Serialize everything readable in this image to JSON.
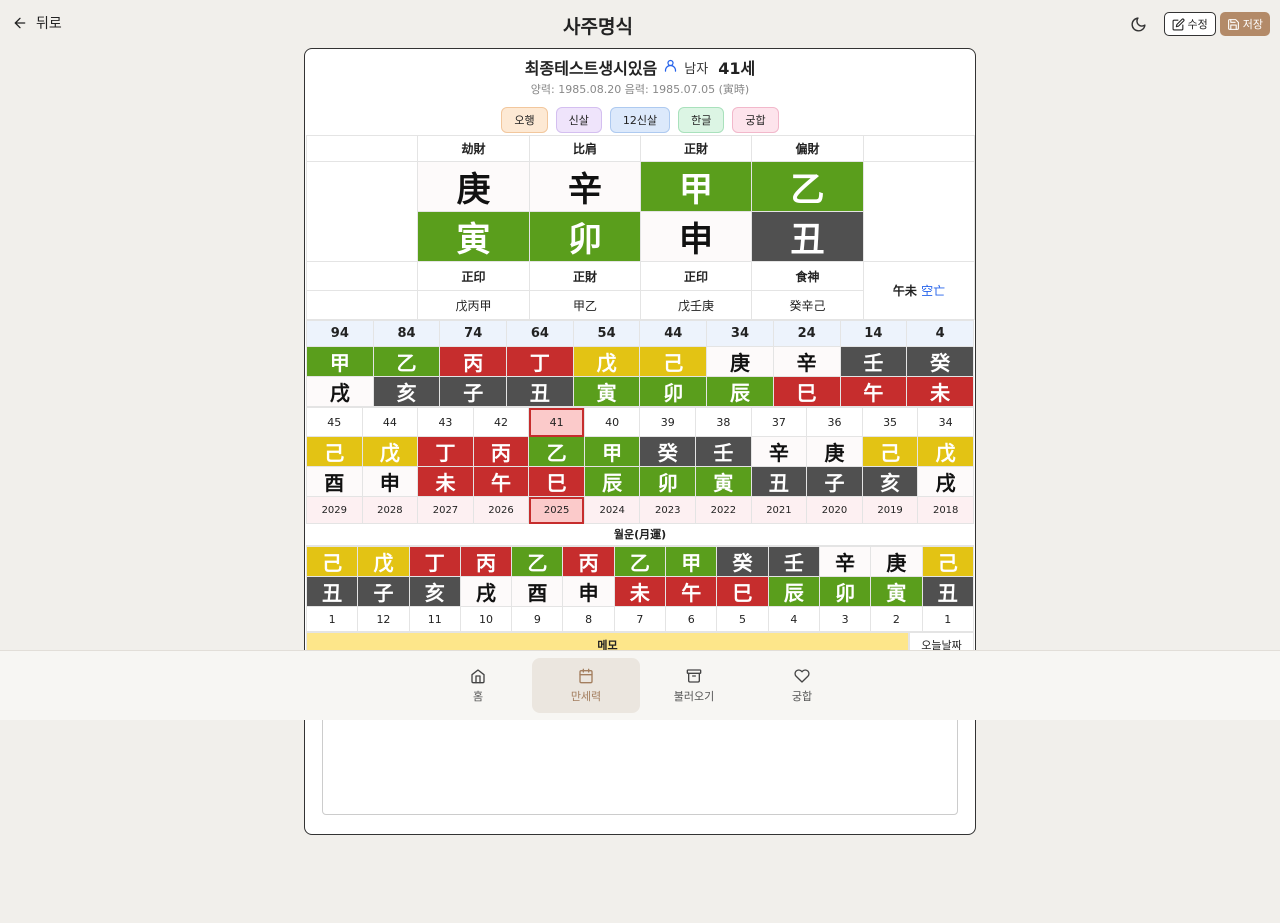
{
  "topbar": {
    "back_label": "뒤로",
    "title": "사주명식",
    "edit_label": "수정",
    "save_label": "저장"
  },
  "profile": {
    "name": "최종테스트생시있음",
    "gender": "남자",
    "age": "41세",
    "dates": "양력: 1985.08.20 음력: 1985.07.05 (寅時)"
  },
  "tags": [
    {
      "label": "오행",
      "bg": "#fde9d4",
      "border": "#f2c79d"
    },
    {
      "label": "신살",
      "bg": "#efe4fb",
      "border": "#d4bff0"
    },
    {
      "label": "12신살",
      "bg": "#dce9fb",
      "border": "#aecaf0"
    },
    {
      "label": "한글",
      "bg": "#dcf5e4",
      "border": "#a9e1bc"
    },
    {
      "label": "궁합",
      "bg": "#fde4ec",
      "border": "#f2b8cb"
    }
  ],
  "pillars": {
    "sipsin_top": [
      "劫財",
      "比肩",
      "正財",
      "偏財"
    ],
    "stems": [
      {
        "char": "庚",
        "el": "metal"
      },
      {
        "char": "辛",
        "el": "metal"
      },
      {
        "char": "甲",
        "el": "wood"
      },
      {
        "char": "乙",
        "el": "wood"
      }
    ],
    "branches": [
      {
        "char": "寅",
        "el": "wood"
      },
      {
        "char": "卯",
        "el": "wood"
      },
      {
        "char": "申",
        "el": "metal"
      },
      {
        "char": "丑",
        "el": "water"
      }
    ],
    "sipsin_bottom": [
      "正印",
      "正財",
      "正印",
      "食神"
    ],
    "jijanggan": [
      "戊丙甲",
      "甲乙",
      "戊壬庚",
      "癸辛己"
    ],
    "gongmang_branch": "午未",
    "gongmang_label": "空亡"
  },
  "daeun": {
    "ages": [
      "94",
      "84",
      "74",
      "64",
      "54",
      "44",
      "34",
      "24",
      "14",
      "4"
    ],
    "stems": [
      {
        "char": "甲",
        "el": "wood"
      },
      {
        "char": "乙",
        "el": "wood"
      },
      {
        "char": "丙",
        "el": "fire"
      },
      {
        "char": "丁",
        "el": "fire"
      },
      {
        "char": "戊",
        "el": "earth"
      },
      {
        "char": "己",
        "el": "earth"
      },
      {
        "char": "庚",
        "el": "metal"
      },
      {
        "char": "辛",
        "el": "metal"
      },
      {
        "char": "壬",
        "el": "water"
      },
      {
        "char": "癸",
        "el": "water"
      }
    ],
    "branches": [
      {
        "char": "戌",
        "el": "metal"
      },
      {
        "char": "亥",
        "el": "water"
      },
      {
        "char": "子",
        "el": "water"
      },
      {
        "char": "丑",
        "el": "water"
      },
      {
        "char": "寅",
        "el": "wood"
      },
      {
        "char": "卯",
        "el": "wood"
      },
      {
        "char": "辰",
        "el": "wood"
      },
      {
        "char": "巳",
        "el": "fire"
      },
      {
        "char": "午",
        "el": "fire"
      },
      {
        "char": "未",
        "el": "fire"
      }
    ]
  },
  "seun": {
    "ages": [
      "45",
      "44",
      "43",
      "42",
      "41",
      "40",
      "39",
      "38",
      "37",
      "36",
      "35",
      "34"
    ],
    "current_index": 4,
    "stems": [
      {
        "char": "己",
        "el": "earth"
      },
      {
        "char": "戊",
        "el": "earth"
      },
      {
        "char": "丁",
        "el": "fire"
      },
      {
        "char": "丙",
        "el": "fire"
      },
      {
        "char": "乙",
        "el": "wood"
      },
      {
        "char": "甲",
        "el": "wood"
      },
      {
        "char": "癸",
        "el": "water"
      },
      {
        "char": "壬",
        "el": "water"
      },
      {
        "char": "辛",
        "el": "metal"
      },
      {
        "char": "庚",
        "el": "metal"
      },
      {
        "char": "己",
        "el": "earth"
      },
      {
        "char": "戊",
        "el": "earth"
      }
    ],
    "branches": [
      {
        "char": "酉",
        "el": "metal"
      },
      {
        "char": "申",
        "el": "metal"
      },
      {
        "char": "未",
        "el": "fire"
      },
      {
        "char": "午",
        "el": "fire"
      },
      {
        "char": "巳",
        "el": "fire"
      },
      {
        "char": "辰",
        "el": "wood"
      },
      {
        "char": "卯",
        "el": "wood"
      },
      {
        "char": "寅",
        "el": "wood"
      },
      {
        "char": "丑",
        "el": "water"
      },
      {
        "char": "子",
        "el": "water"
      },
      {
        "char": "亥",
        "el": "water"
      },
      {
        "char": "戌",
        "el": "metal"
      }
    ],
    "years": [
      "2029",
      "2028",
      "2027",
      "2026",
      "2025",
      "2024",
      "2023",
      "2022",
      "2021",
      "2020",
      "2019",
      "2018"
    ]
  },
  "wolun": {
    "title": "월운(月運)",
    "stems": [
      {
        "char": "己",
        "el": "earth"
      },
      {
        "char": "戊",
        "el": "earth"
      },
      {
        "char": "丁",
        "el": "fire"
      },
      {
        "char": "丙",
        "el": "fire"
      },
      {
        "char": "乙",
        "el": "wood"
      },
      {
        "char": "丙",
        "el": "fire"
      },
      {
        "char": "乙",
        "el": "wood"
      },
      {
        "char": "甲",
        "el": "wood"
      },
      {
        "char": "癸",
        "el": "water"
      },
      {
        "char": "壬",
        "el": "water"
      },
      {
        "char": "辛",
        "el": "metal"
      },
      {
        "char": "庚",
        "el": "metal"
      },
      {
        "char": "己",
        "el": "earth"
      }
    ],
    "branches": [
      {
        "char": "丑",
        "el": "water"
      },
      {
        "char": "子",
        "el": "water"
      },
      {
        "char": "亥",
        "el": "water"
      },
      {
        "char": "戌",
        "el": "metal"
      },
      {
        "char": "酉",
        "el": "metal"
      },
      {
        "char": "申",
        "el": "metal"
      },
      {
        "char": "未",
        "el": "fire"
      },
      {
        "char": "午",
        "el": "fire"
      },
      {
        "char": "巳",
        "el": "fire"
      },
      {
        "char": "辰",
        "el": "wood"
      },
      {
        "char": "卯",
        "el": "wood"
      },
      {
        "char": "寅",
        "el": "wood"
      },
      {
        "char": "丑",
        "el": "water"
      }
    ],
    "months": [
      "1",
      "12",
      "11",
      "10",
      "9",
      "8",
      "7",
      "6",
      "5",
      "4",
      "3",
      "2",
      "1"
    ]
  },
  "memo": {
    "label": "메모",
    "today_label": "오늘날짜"
  },
  "bottomnav": [
    {
      "label": "홈",
      "icon": "home-icon",
      "active": false
    },
    {
      "label": "만세력",
      "icon": "calendar-icon",
      "active": true
    },
    {
      "label": "불러오기",
      "icon": "archive-icon",
      "active": false
    },
    {
      "label": "궁합",
      "icon": "heart-icon",
      "active": false
    }
  ]
}
